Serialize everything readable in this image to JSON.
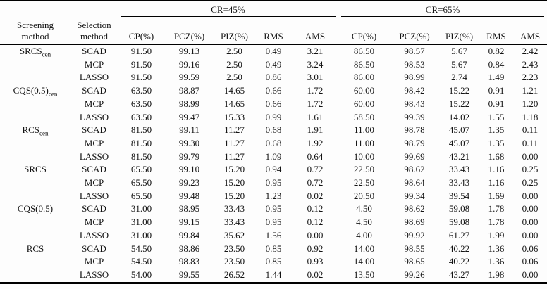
{
  "table": {
    "header": {
      "screening_line1": "Screening",
      "screening_line2": "method",
      "selection_line1": "Selection",
      "selection_line2": "method",
      "cr45_label": "CR=45%",
      "cr65_label": "CR=65%",
      "metrics": [
        "CP(%)",
        "PCZ(%)",
        "PIZ(%)",
        "RMS",
        "AMS"
      ]
    },
    "rows": [
      {
        "screening": {
          "base": "SRCS",
          "sub": "cen"
        },
        "selection": "SCAD",
        "cr45": [
          "91.50",
          "99.13",
          "2.50",
          "0.49",
          "3.21"
        ],
        "cr65": [
          "86.50",
          "98.57",
          "5.67",
          "0.82",
          "2.42"
        ]
      },
      {
        "screening": null,
        "selection": "MCP",
        "cr45": [
          "91.50",
          "99.16",
          "2.50",
          "0.49",
          "3.24"
        ],
        "cr65": [
          "86.50",
          "98.53",
          "5.67",
          "0.84",
          "2.43"
        ]
      },
      {
        "screening": null,
        "selection": "LASSO",
        "cr45": [
          "91.50",
          "99.59",
          "2.50",
          "0.86",
          "3.01"
        ],
        "cr65": [
          "86.00",
          "98.99",
          "2.74",
          "1.49",
          "2.23"
        ]
      },
      {
        "screening": {
          "base": "CQS(0.5)",
          "sub": "cen"
        },
        "selection": "SCAD",
        "cr45": [
          "63.50",
          "98.87",
          "14.65",
          "0.66",
          "1.72"
        ],
        "cr65": [
          "60.00",
          "98.42",
          "15.22",
          "0.91",
          "1.21"
        ]
      },
      {
        "screening": null,
        "selection": "MCP",
        "cr45": [
          "63.50",
          "98.99",
          "14.65",
          "0.66",
          "1.72"
        ],
        "cr65": [
          "60.00",
          "98.43",
          "15.22",
          "0.91",
          "1.20"
        ]
      },
      {
        "screening": null,
        "selection": "LASSO",
        "cr45": [
          "63.50",
          "99.47",
          "15.33",
          "0.99",
          "1.61"
        ],
        "cr65": [
          "58.50",
          "99.39",
          "14.02",
          "1.55",
          "1.18"
        ]
      },
      {
        "screening": {
          "base": "RCS",
          "sub": "cen"
        },
        "selection": "SCAD",
        "cr45": [
          "81.50",
          "99.11",
          "11.27",
          "0.68",
          "1.91"
        ],
        "cr65": [
          "11.00",
          "98.78",
          "45.07",
          "1.35",
          "0.11"
        ]
      },
      {
        "screening": null,
        "selection": "MCP",
        "cr45": [
          "81.50",
          "99.30",
          "11.27",
          "0.68",
          "1.92"
        ],
        "cr65": [
          "11.00",
          "98.79",
          "45.07",
          "1.35",
          "0.11"
        ]
      },
      {
        "screening": null,
        "selection": "LASSO",
        "cr45": [
          "81.50",
          "99.79",
          "11.27",
          "1.09",
          "0.64"
        ],
        "cr65": [
          "10.00",
          "99.69",
          "43.21",
          "1.68",
          "0.00"
        ]
      },
      {
        "screening": {
          "base": "SRCS",
          "sub": null
        },
        "selection": "SCAD",
        "cr45": [
          "65.50",
          "99.10",
          "15.20",
          "0.94",
          "0.72"
        ],
        "cr65": [
          "22.50",
          "98.62",
          "33.43",
          "1.16",
          "0.25"
        ]
      },
      {
        "screening": null,
        "selection": "MCP",
        "cr45": [
          "65.50",
          "99.23",
          "15.20",
          "0.95",
          "0.72"
        ],
        "cr65": [
          "22.50",
          "98.64",
          "33.43",
          "1.16",
          "0.25"
        ]
      },
      {
        "screening": null,
        "selection": "LASSO",
        "cr45": [
          "65.50",
          "99.48",
          "15.20",
          "1.23",
          "0.02"
        ],
        "cr65": [
          "20.50",
          "99.34",
          "39.54",
          "1.69",
          "0.00"
        ]
      },
      {
        "screening": {
          "base": "CQS(0.5)",
          "sub": null
        },
        "selection": "SCAD",
        "cr45": [
          "31.00",
          "98.95",
          "33.43",
          "0.95",
          "0.12"
        ],
        "cr65": [
          "4.50",
          "98.62",
          "59.08",
          "1.78",
          "0.00"
        ]
      },
      {
        "screening": null,
        "selection": "MCP",
        "cr45": [
          "31.00",
          "99.15",
          "33.43",
          "0.95",
          "0.12"
        ],
        "cr65": [
          "4.50",
          "98.69",
          "59.08",
          "1.78",
          "0.00"
        ]
      },
      {
        "screening": null,
        "selection": "LASSO",
        "cr45": [
          "31.00",
          "99.84",
          "35.62",
          "1.56",
          "0.00"
        ],
        "cr65": [
          "4.00",
          "99.92",
          "61.27",
          "1.99",
          "0.00"
        ]
      },
      {
        "screening": {
          "base": "RCS",
          "sub": null
        },
        "selection": "SCAD",
        "cr45": [
          "54.50",
          "98.86",
          "23.50",
          "0.85",
          "0.92"
        ],
        "cr65": [
          "14.00",
          "98.55",
          "40.22",
          "1.36",
          "0.06"
        ]
      },
      {
        "screening": null,
        "selection": "MCP",
        "cr45": [
          "54.50",
          "98.83",
          "23.50",
          "0.85",
          "0.93"
        ],
        "cr65": [
          "14.00",
          "98.65",
          "40.22",
          "1.36",
          "0.06"
        ]
      },
      {
        "screening": null,
        "selection": "LASSO",
        "cr45": [
          "54.00",
          "99.55",
          "26.52",
          "1.44",
          "0.02"
        ],
        "cr65": [
          "13.50",
          "99.26",
          "43.27",
          "1.98",
          "0.00"
        ]
      }
    ]
  }
}
